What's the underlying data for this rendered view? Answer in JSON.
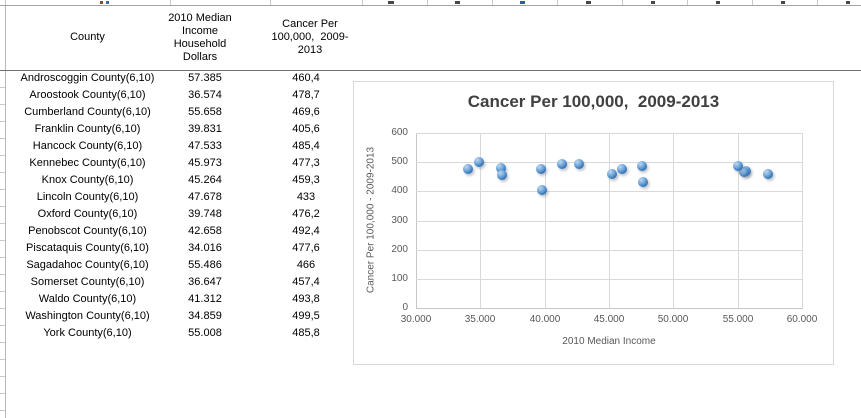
{
  "table": {
    "header": {
      "county": "County",
      "income": "2010 Median\nIncome\nHousehold\nDollars",
      "cancer": "Cancer Per\n100,000,  2009-\n2013"
    },
    "rows": [
      {
        "county": "Androscoggin County(6,10)",
        "income": "57.385",
        "cancer": "460,4"
      },
      {
        "county": "Aroostook County(6,10)",
        "income": "36.574",
        "cancer": "478,7"
      },
      {
        "county": "Cumberland County(6,10)",
        "income": "55.658",
        "cancer": "469,6"
      },
      {
        "county": "Franklin County(6,10)",
        "income": "39.831",
        "cancer": "405,6"
      },
      {
        "county": "Hancock County(6,10)",
        "income": "47.533",
        "cancer": "485,4"
      },
      {
        "county": "Kennebec County(6,10)",
        "income": "45.973",
        "cancer": "477,3"
      },
      {
        "county": "Knox County(6,10)",
        "income": "45.264",
        "cancer": "459,3"
      },
      {
        "county": "Lincoln County(6,10)",
        "income": "47.678",
        "cancer": "433"
      },
      {
        "county": "Oxford County(6,10)",
        "income": "39.748",
        "cancer": "476,2"
      },
      {
        "county": "Penobscot County(6,10)",
        "income": "42.658",
        "cancer": "492,4"
      },
      {
        "county": "Piscataquis County(6,10)",
        "income": "34.016",
        "cancer": "477,6"
      },
      {
        "county": "Sagadahoc County(6,10)",
        "income": "55.486",
        "cancer": "466"
      },
      {
        "county": "Somerset County(6,10)",
        "income": "36.647",
        "cancer": "457,4"
      },
      {
        "county": "Waldo County(6,10)",
        "income": "41.312",
        "cancer": "493,8"
      },
      {
        "county": "Washington County(6,10)",
        "income": "34.859",
        "cancer": "499,5"
      },
      {
        "county": "York County(6,10)",
        "income": "55.008",
        "cancer": "485,8"
      }
    ]
  },
  "chart_data": {
    "type": "scatter",
    "title": "Cancer Per 100,000,  2009-2013",
    "xlabel": "2010 Median Income",
    "ylabel": "Cancer Per 100,000 - 2009-2013",
    "xlim": [
      30000,
      60000
    ],
    "ylim": [
      0,
      600
    ],
    "x_tick_labels": [
      "30.000",
      "35.000",
      "40.000",
      "45.000",
      "50.000",
      "55.000",
      "60.000"
    ],
    "y_tick_labels": [
      "0",
      "100",
      "200",
      "300",
      "400",
      "500",
      "600"
    ],
    "grid": true,
    "legend": "none",
    "marker_color": "#3173b5",
    "points": [
      {
        "x": 57385,
        "y": 460.4
      },
      {
        "x": 36574,
        "y": 478.7
      },
      {
        "x": 55658,
        "y": 469.6
      },
      {
        "x": 39831,
        "y": 405.6
      },
      {
        "x": 47533,
        "y": 485.4
      },
      {
        "x": 45973,
        "y": 477.3
      },
      {
        "x": 45264,
        "y": 459.3
      },
      {
        "x": 47678,
        "y": 433
      },
      {
        "x": 39748,
        "y": 476.2
      },
      {
        "x": 42658,
        "y": 492.4
      },
      {
        "x": 34016,
        "y": 477.6
      },
      {
        "x": 55486,
        "y": 466
      },
      {
        "x": 36647,
        "y": 457.4
      },
      {
        "x": 41312,
        "y": 493.8
      },
      {
        "x": 34859,
        "y": 499.5
      },
      {
        "x": 55008,
        "y": 485.8
      }
    ]
  }
}
